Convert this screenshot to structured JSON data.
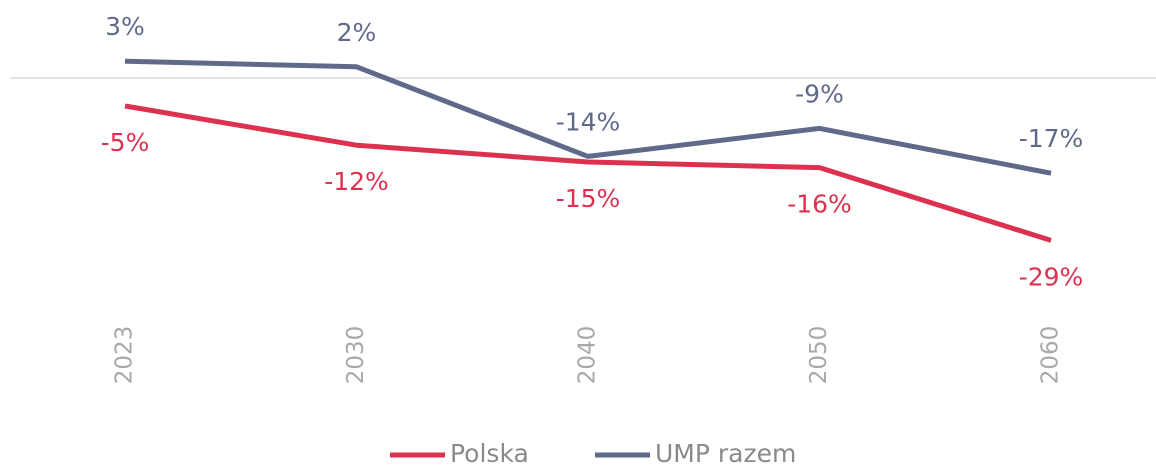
{
  "chart_data": {
    "type": "line",
    "categories": [
      "2023",
      "2030",
      "2040",
      "2050",
      "2060"
    ],
    "series": [
      {
        "name": "Polska",
        "color": "#dc3250",
        "values": [
          -5,
          -12,
          -15,
          -16,
          -29
        ],
        "value_labels": [
          "-5%",
          "-12%",
          "-15%",
          "-16%",
          "-29%"
        ]
      },
      {
        "name": "UMP razem",
        "color": "#5f6a8a",
        "values": [
          3,
          2,
          -14,
          -9,
          -17
        ],
        "value_labels": [
          "3%",
          "2%",
          "-14%",
          "-9%",
          "-17%"
        ]
      }
    ],
    "ylim": [
      -30,
      5
    ],
    "legend": "bottom"
  }
}
